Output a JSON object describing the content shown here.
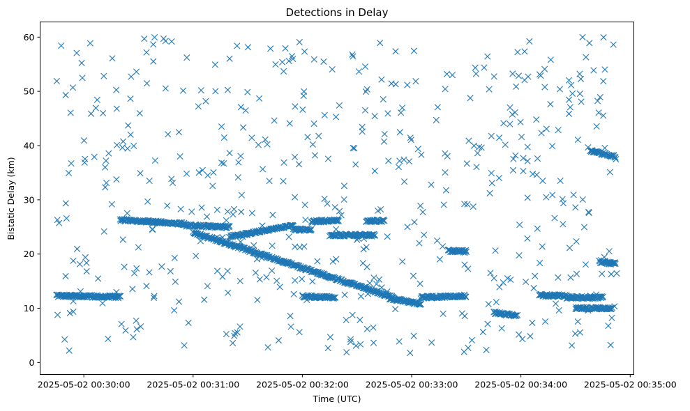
{
  "chart_data": {
    "type": "scatter",
    "title": "Detections in Delay",
    "xlabel": "Time (UTC)",
    "ylabel": "Bistatic Delay (km)",
    "x_is_time": true,
    "x_tick_labels": [
      "2025-05-02 00:30:00",
      "2025-05-02 00:31:00",
      "2025-05-02 00:32:00",
      "2025-05-02 00:33:00",
      "2025-05-02 00:34:00",
      "2025-05-02 00:35:00"
    ],
    "xlim": [
      "2025-05-02 00:29:36",
      "2025-05-02 00:35:02"
    ],
    "y_ticks": [
      0,
      10,
      20,
      30,
      40,
      50,
      60
    ],
    "ylim": [
      -2.2,
      62.8
    ],
    "grid": false,
    "marker": "x",
    "color": "#1f77b4",
    "time_range": [
      "2025-05-02 00:29:45",
      "2025-05-02 00:34:53"
    ],
    "tracks": [
      {
        "t_start": "2025-05-02 00:29:45",
        "t_end": "2025-05-02 00:30:20",
        "y_start": 12.3,
        "y_end": 12.1
      },
      {
        "t_start": "2025-05-02 00:30:20",
        "t_end": "2025-05-02 00:30:35",
        "y_start": 26.3,
        "y_end": 26.0
      },
      {
        "t_start": "2025-05-02 00:30:35",
        "t_end": "2025-05-02 00:30:55",
        "y_start": 26.0,
        "y_end": 25.6
      },
      {
        "t_start": "2025-05-02 00:30:55",
        "t_end": "2025-05-02 00:31:20",
        "y_start": 25.3,
        "y_end": 25.0
      },
      {
        "t_start": "2025-05-02 00:31:00",
        "t_end": "2025-05-02 00:32:50",
        "y_start": 24.0,
        "y_end": 12.0
      },
      {
        "t_start": "2025-05-02 00:31:20",
        "t_end": "2025-05-02 00:31:55",
        "y_start": 23.2,
        "y_end": 25.3
      },
      {
        "t_start": "2025-05-02 00:31:55",
        "t_end": "2025-05-02 00:32:05",
        "y_start": 24.5,
        "y_end": 24.5
      },
      {
        "t_start": "2025-05-02 00:32:05",
        "t_end": "2025-05-02 00:32:20",
        "y_start": 26.0,
        "y_end": 26.2
      },
      {
        "t_start": "2025-05-02 00:32:00",
        "t_end": "2025-05-02 00:32:18",
        "y_start": 12.2,
        "y_end": 12.0
      },
      {
        "t_start": "2025-05-02 00:32:48",
        "t_end": "2025-05-02 00:33:05",
        "y_start": 11.8,
        "y_end": 10.8
      },
      {
        "t_start": "2025-05-02 00:32:15",
        "t_end": "2025-05-02 00:32:40",
        "y_start": 23.5,
        "y_end": 23.5
      },
      {
        "t_start": "2025-05-02 00:32:35",
        "t_end": "2025-05-02 00:32:45",
        "y_start": 26.0,
        "y_end": 26.2
      },
      {
        "t_start": "2025-05-02 00:33:05",
        "t_end": "2025-05-02 00:33:30",
        "y_start": 12.0,
        "y_end": 12.3
      },
      {
        "t_start": "2025-05-02 00:33:20",
        "t_end": "2025-05-02 00:33:30",
        "y_start": 20.6,
        "y_end": 20.5
      },
      {
        "t_start": "2025-05-02 00:33:45",
        "t_end": "2025-05-02 00:33:58",
        "y_start": 9.2,
        "y_end": 8.6
      },
      {
        "t_start": "2025-05-02 00:34:10",
        "t_end": "2025-05-02 00:34:25",
        "y_start": 12.4,
        "y_end": 12.3
      },
      {
        "t_start": "2025-05-02 00:34:25",
        "t_end": "2025-05-02 00:34:45",
        "y_start": 12.0,
        "y_end": 12.0
      },
      {
        "t_start": "2025-05-02 00:34:30",
        "t_end": "2025-05-02 00:34:50",
        "y_start": 10.0,
        "y_end": 10.0
      },
      {
        "t_start": "2025-05-02 00:34:38",
        "t_end": "2025-05-02 00:34:52",
        "y_start": 39.0,
        "y_end": 38.0
      },
      {
        "t_start": "2025-05-02 00:34:43",
        "t_end": "2025-05-02 00:34:52",
        "y_start": 18.6,
        "y_end": 18.2
      }
    ],
    "background_points": 520,
    "random_seed": 7
  }
}
